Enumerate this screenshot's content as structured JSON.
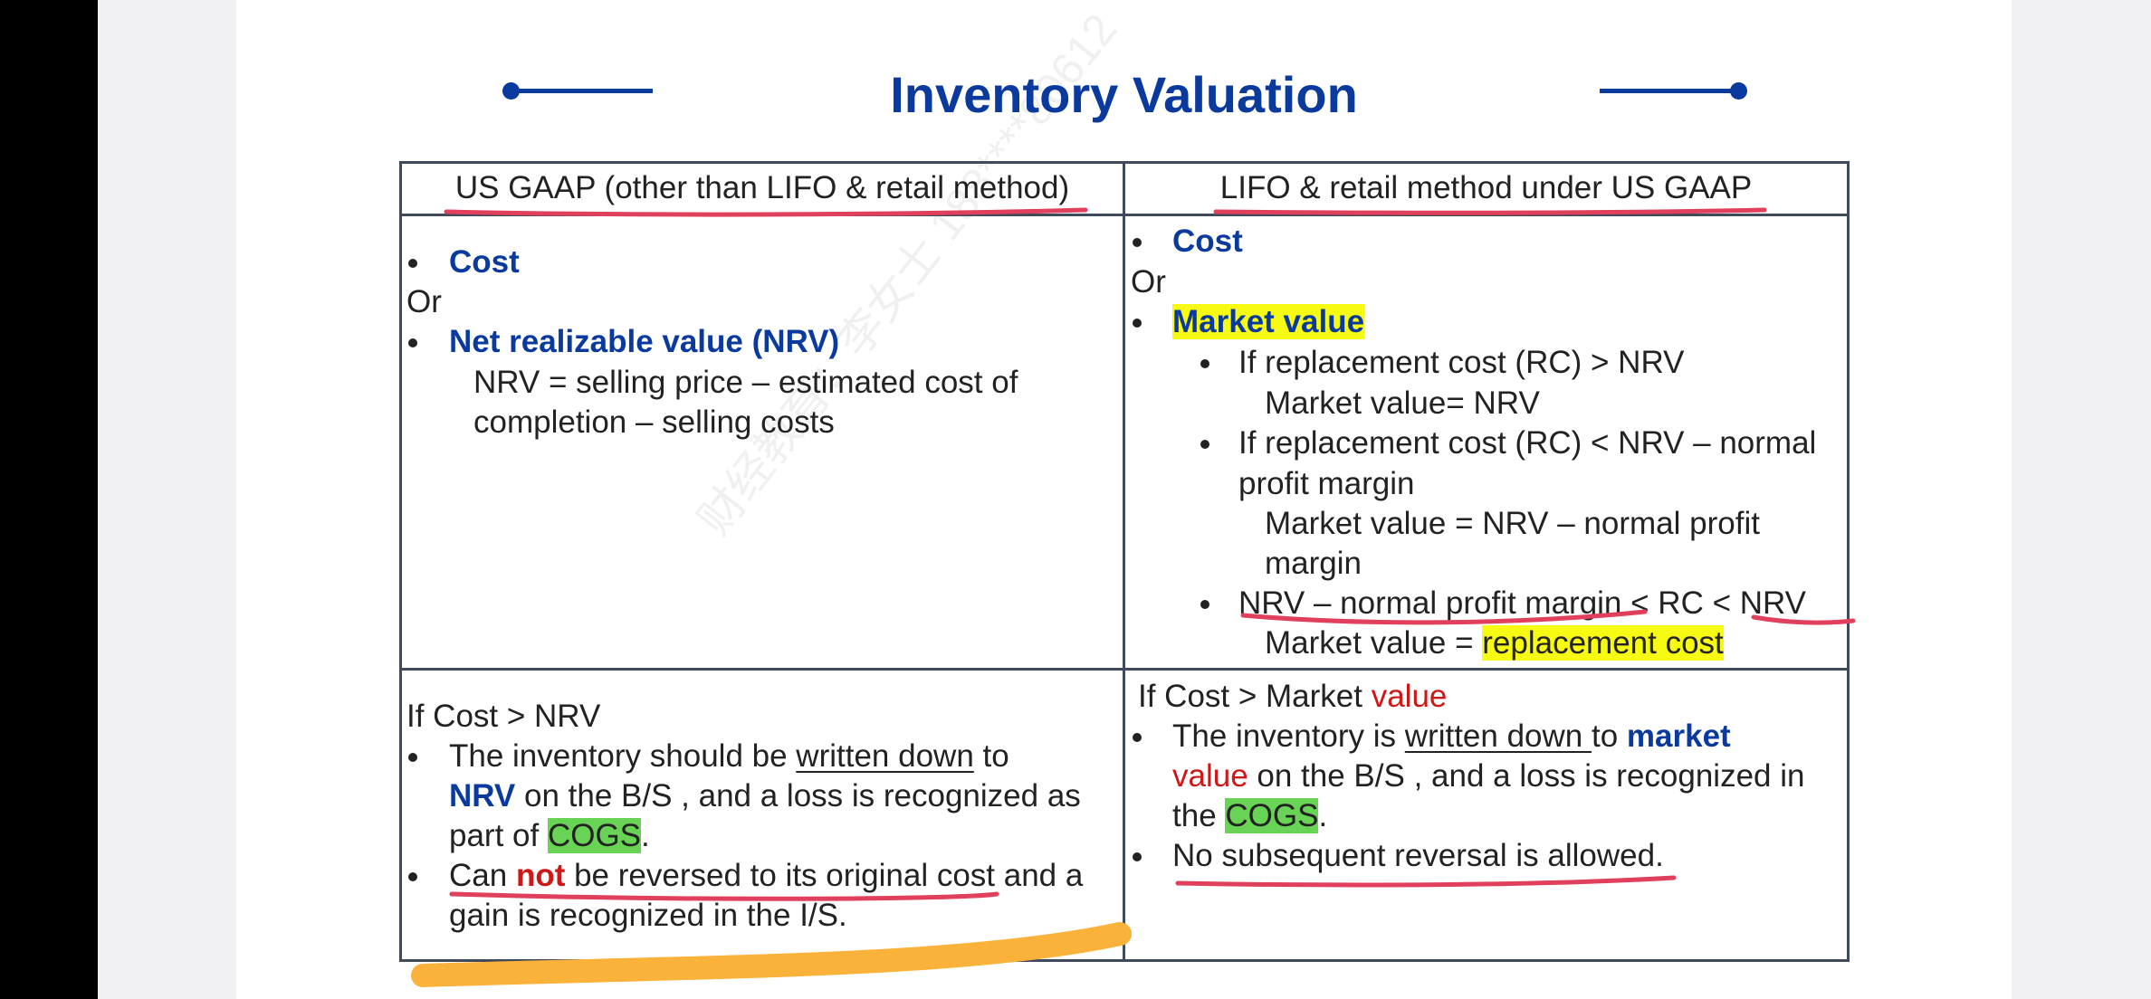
{
  "slide": {
    "title": "Inventory Valuation",
    "watermark": "财经教育：李女士 188****80612"
  },
  "table": {
    "left_header": "US GAAP (other than LIFO & retail method)",
    "right_header": "LIFO & retail method under US GAAP",
    "left_top": {
      "bullet1": "Cost",
      "or": "Or",
      "bullet2": "Net realizable value (NRV)",
      "formula_line1": "NRV = selling price – estimated cost of",
      "formula_line2": "completion – selling costs"
    },
    "right_top": {
      "bullet1": "Cost",
      "or": "Or",
      "bullet2": "Market value",
      "sub1": "If replacement cost (RC) > NRV",
      "sub1_result": "Market value= NRV",
      "sub2_line1": "If replacement cost (RC) < NRV – normal",
      "sub2_line2": "profit margin",
      "sub2_result1": "Market value = NRV – normal profit",
      "sub2_result2": "margin",
      "sub3": "NRV – normal profit margin < RC < NRV",
      "sub3_result_prefix": "Market value = ",
      "sub3_result_hl": "replacement cost"
    },
    "left_bottom": {
      "condition": "If  Cost > NRV",
      "b1_l1_a": "The inventory should be ",
      "b1_l1_u": "written down",
      "b1_l1_b": " to",
      "b1_l2_nrv": "NRV",
      "b1_l2_rest": " on the B/S , and a loss is recognized as",
      "b1_l3_a": "part of ",
      "b1_l3_cogs": "COGS",
      "b1_l3_b": ".",
      "b2_l1_a": "Can ",
      "b2_l1_not": "not",
      "b2_l1_b": " be reversed to its original cost and a",
      "b2_l2": "gain is recognized in the I/S."
    },
    "right_bottom": {
      "condition_a": "If Cost > Market ",
      "condition_red": "value",
      "b1_l1_a": "The inventory is ",
      "b1_l1_u": "written down ",
      "b1_l1_b": "to ",
      "b1_l1_market": "market",
      "b1_l2_value": "value",
      "b1_l2_rest": " on the B/S , and a loss is recognized in",
      "b1_l3_a": "the ",
      "b1_l3_cogs": "COGS",
      "b1_l3_b": ".",
      "b2": "No subsequent reversal is allowed."
    }
  },
  "colors": {
    "title_blue": "#0a3a9e",
    "emphasis_red": "#d01717",
    "highlight_yellow": "#f7fb14",
    "highlight_green": "#69d356",
    "pen_red": "#e0405c",
    "pen_orange": "#fbb23a"
  }
}
